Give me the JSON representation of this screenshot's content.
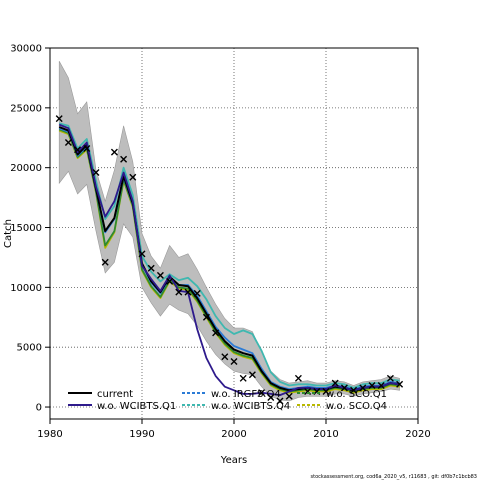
{
  "chart_data": {
    "type": "line",
    "title": "",
    "xlabel": "Years",
    "ylabel": "Catch",
    "xlim": [
      1980,
      2020
    ],
    "ylim": [
      -1000,
      30000
    ],
    "xticks": [
      1980,
      1990,
      2000,
      2010,
      2020
    ],
    "yticks": [
      0,
      5000,
      10000,
      15000,
      20000,
      25000,
      30000
    ],
    "grid": true,
    "legend_position": "bottom",
    "colors": {
      "current": "#000000",
      "wo_WCIBTS_Q1": "#2e1a8c",
      "wo_IRGFS_Q4": "#2b7bd6",
      "wo_WCIBTS_Q4": "#3fb8b0",
      "wo_SCO_Q1": "#2f8a2f",
      "wo_SCO_Q4": "#b8b800",
      "band": "#bdbdbd",
      "observed": "#000000"
    },
    "years": [
      1981,
      1982,
      1983,
      1984,
      1985,
      1986,
      1987,
      1988,
      1989,
      1990,
      1991,
      1992,
      1993,
      1994,
      1995,
      1996,
      1997,
      1998,
      1999,
      2000,
      2001,
      2002,
      2003,
      2004,
      2005,
      2006,
      2007,
      2008,
      2009,
      2010,
      2011,
      2012,
      2013,
      2014,
      2015,
      2016,
      2017,
      2018
    ],
    "band": {
      "upper": [
        28900,
        27500,
        24500,
        25500,
        19800,
        17200,
        19800,
        23500,
        20500,
        14500,
        12600,
        11600,
        13500,
        12500,
        12800,
        11500,
        10000,
        8600,
        7400,
        6600,
        6600,
        6300,
        4600,
        3000,
        2300,
        2000,
        2100,
        2200,
        2000,
        2000,
        2200,
        2100,
        1800,
        2100,
        2200,
        2300,
        2600,
        2400
      ],
      "lower": [
        18700,
        19700,
        17800,
        18600,
        14700,
        11200,
        12100,
        15300,
        14200,
        10000,
        8700,
        7600,
        8600,
        8100,
        7800,
        6800,
        5500,
        4400,
        3600,
        3000,
        2800,
        2700,
        1700,
        900,
        600,
        500,
        800,
        900,
        900,
        900,
        1100,
        1100,
        900,
        1100,
        1200,
        1300,
        1500,
        1400
      ]
    },
    "series": [
      {
        "name": "current",
        "key": "current",
        "dash": "solid",
        "values": [
          23400,
          23100,
          21100,
          21900,
          18200,
          14700,
          15800,
          19300,
          17000,
          12000,
          10500,
          9600,
          10900,
          10200,
          10100,
          9100,
          7800,
          6500,
          5500,
          4800,
          4500,
          4300,
          3000,
          2000,
          1600,
          1400,
          1500,
          1600,
          1500,
          1500,
          1700,
          1600,
          1400,
          1600,
          1700,
          1700,
          2000,
          1900
        ]
      },
      {
        "name": "w.o. WCIBTS.Q1",
        "key": "wo_WCIBTS_Q1",
        "dash": "solid",
        "values": [
          23600,
          23300,
          21300,
          22100,
          18400,
          15900,
          17200,
          19600,
          17200,
          11800,
          10700,
          9700,
          11000,
          9700,
          9600,
          6500,
          4100,
          2600,
          1700,
          1400,
          1100,
          1100,
          1200,
          1100,
          1000,
          1300,
          1600,
          1600,
          1500,
          1500,
          1800,
          1600,
          1400,
          1600,
          1700,
          1700,
          2000,
          1900
        ]
      },
      {
        "name": "w.o. IRGFS.Q4",
        "key": "wo_IRGFS_Q4",
        "dash": "dashed",
        "values": [
          23300,
          23000,
          21000,
          21800,
          18100,
          14600,
          15700,
          19200,
          16900,
          11900,
          10400,
          9500,
          10800,
          10200,
          10200,
          9300,
          8000,
          6700,
          5800,
          5100,
          4800,
          4500,
          3200,
          2100,
          1700,
          1500,
          1600,
          1700,
          1600,
          1600,
          1800,
          1700,
          1500,
          1700,
          1800,
          1800,
          2100,
          2000
        ]
      },
      {
        "name": "w.o. WCIBTS.Q4",
        "key": "wo_WCIBTS_Q4",
        "dash": "dashed",
        "values": [
          23700,
          23500,
          21600,
          22400,
          18900,
          15700,
          16800,
          20000,
          17700,
          12600,
          11300,
          10500,
          11100,
          10600,
          10800,
          10100,
          9000,
          7600,
          6600,
          6100,
          6400,
          6100,
          4700,
          2900,
          2100,
          1800,
          1900,
          1900,
          1800,
          1800,
          2000,
          1900,
          1600,
          1900,
          2000,
          2000,
          2300,
          2200
        ]
      },
      {
        "name": "w.o. SCO.Q1",
        "key": "wo_SCO_Q1",
        "dash": "dashed",
        "values": [
          23200,
          22900,
          20900,
          21600,
          18000,
          13500,
          14700,
          19000,
          16800,
          11500,
          10100,
          9200,
          10600,
          10000,
          9900,
          8900,
          7600,
          6300,
          5300,
          4600,
          4300,
          4100,
          2900,
          1900,
          1500,
          1300,
          1400,
          1500,
          1400,
          1400,
          1600,
          1500,
          1300,
          1500,
          1600,
          1600,
          1900,
          1800
        ]
      },
      {
        "name": "w.o. SCO.Q4",
        "key": "wo_SCO_Q4",
        "dash": "dashed",
        "values": [
          23100,
          22800,
          20800,
          21500,
          17900,
          13300,
          14600,
          18900,
          16700,
          11400,
          10000,
          9100,
          10500,
          9900,
          9800,
          8800,
          7500,
          6200,
          5200,
          4500,
          4200,
          4000,
          2800,
          1800,
          1400,
          1200,
          1300,
          1400,
          1300,
          1300,
          1500,
          1400,
          1200,
          1400,
          1500,
          1500,
          1800,
          1700
        ]
      }
    ],
    "observed": {
      "years": [
        1981,
        1982,
        1983,
        1984,
        1985,
        1986,
        1987,
        1988,
        1989,
        1990,
        1991,
        1992,
        1993,
        1994,
        1995,
        1996,
        1997,
        1998,
        1999,
        2000,
        2001,
        2002,
        2003,
        2004,
        2005,
        2006,
        2007,
        2008,
        2009,
        2010,
        2011,
        2012,
        2013,
        2014,
        2015,
        2016,
        2017,
        2018
      ],
      "values": [
        24100,
        22100,
        21500,
        21600,
        19600,
        12100,
        21300,
        20700,
        19200,
        12800,
        11600,
        11000,
        10500,
        9600,
        9600,
        9500,
        7500,
        6200,
        4200,
        3800,
        2400,
        2700,
        1200,
        800,
        500,
        900,
        2400,
        1300,
        1300,
        1300,
        2000,
        1600,
        1400,
        1600,
        1800,
        1800,
        2400,
        1900
      ]
    },
    "legend": [
      {
        "label": "current",
        "key": "current"
      },
      {
        "label": "w.o. WCIBTS.Q1",
        "key": "wo_WCIBTS_Q1"
      },
      {
        "label": "w.o. IRGFS.Q4",
        "key": "wo_IRGFS_Q4"
      },
      {
        "label": "w.o. WCIBTS.Q4",
        "key": "wo_WCIBTS_Q4"
      },
      {
        "label": "w.o. SCO.Q1",
        "key": "wo_SCO_Q1"
      },
      {
        "label": "w.o. SCO.Q4",
        "key": "wo_SCO_Q4"
      }
    ],
    "footer": "stockassessment.org, cod6a_2020_v5, r11683 , git: df0b7c1bcb83"
  }
}
